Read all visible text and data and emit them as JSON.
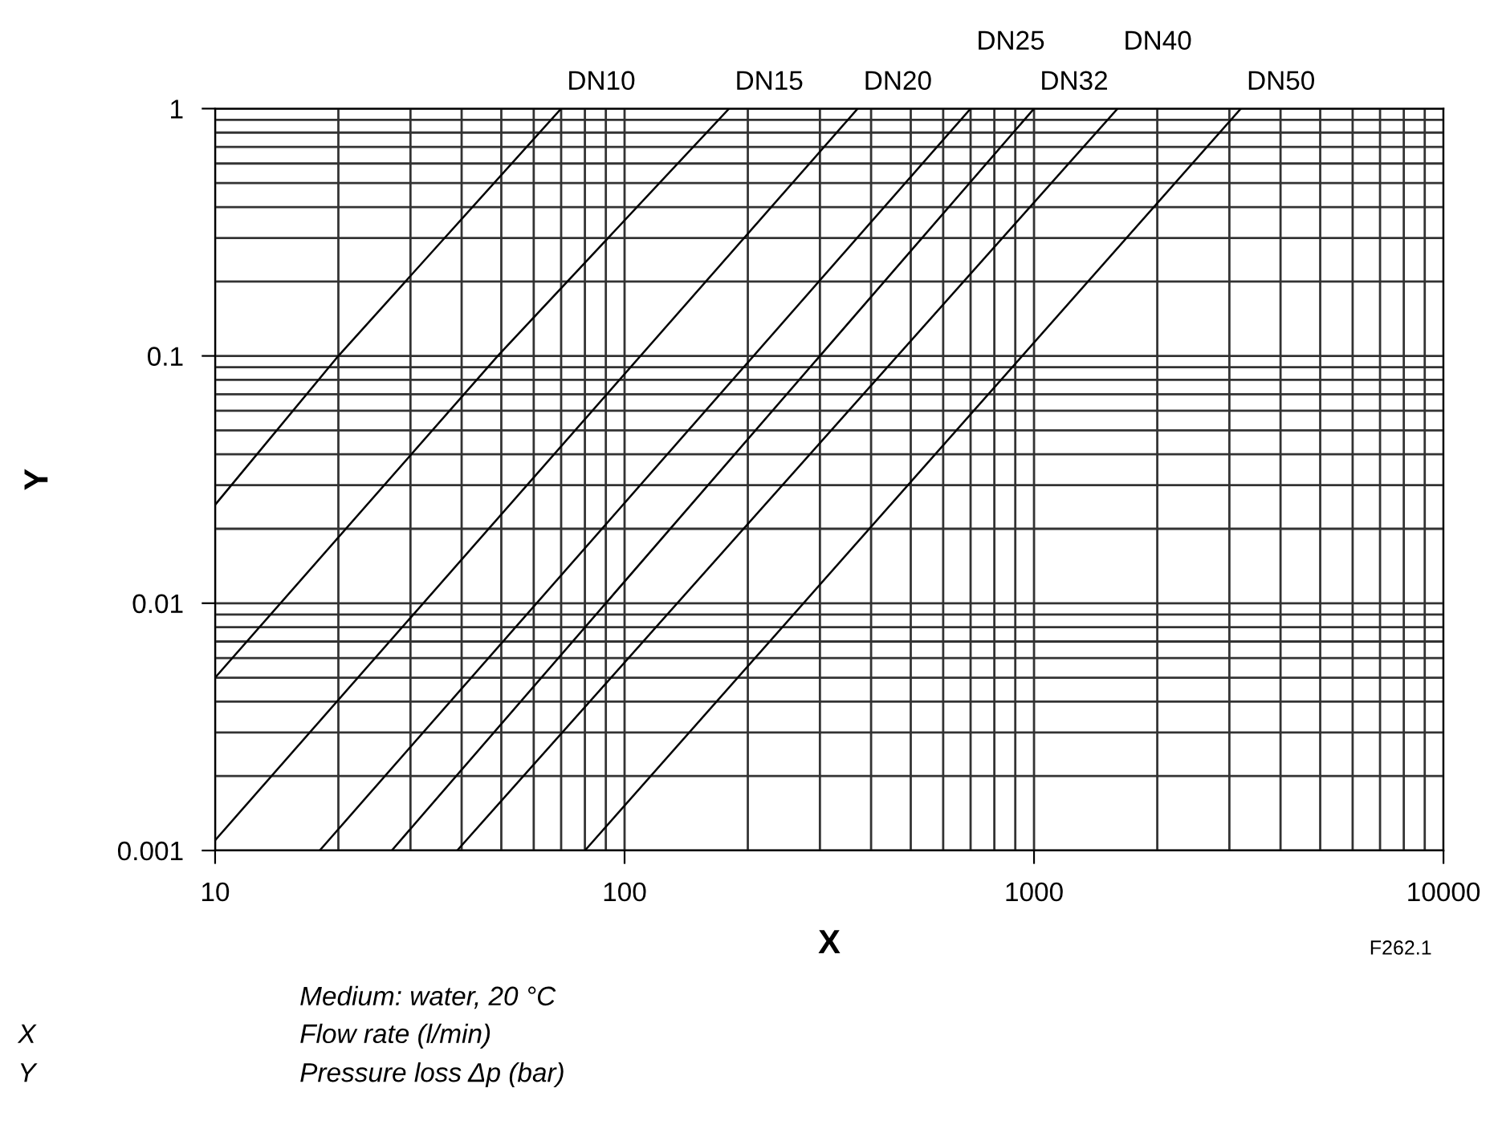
{
  "chart_data": {
    "type": "line",
    "xlabel": "X",
    "ylabel": "Y",
    "xlim": [
      10,
      10000
    ],
    "ylim": [
      0.001,
      1
    ],
    "xticks": [
      10,
      100,
      1000,
      10000
    ],
    "yticks": [
      0.001,
      0.01,
      0.1,
      1
    ],
    "log": "xy",
    "grid": true,
    "legend": false,
    "marker": "none",
    "line_style": "solid",
    "series": [
      {
        "name": "DN10",
        "color": "#000000",
        "x": [
          10,
          20,
          70
        ],
        "values": [
          0.025,
          0.1,
          1
        ]
      },
      {
        "name": "DN15",
        "color": "#000000",
        "x": [
          10,
          49,
          180
        ],
        "values": [
          0.005,
          0.1,
          1
        ]
      },
      {
        "name": "DN20",
        "color": "#000000",
        "x": [
          10,
          371
        ],
        "values": [
          0.0011,
          1
        ]
      },
      {
        "name": "DN25",
        "color": "#000000",
        "x": [
          18,
          700
        ],
        "values": [
          0.001,
          1
        ]
      },
      {
        "name": "DN32",
        "color": "#000000",
        "x": [
          27,
          1000
        ],
        "values": [
          0.001,
          1
        ]
      },
      {
        "name": "DN40",
        "color": "#000000",
        "x": [
          39,
          1600
        ],
        "values": [
          0.001,
          1
        ]
      },
      {
        "name": "DN50",
        "color": "#000000",
        "x": [
          80,
          3200
        ],
        "values": [
          0.001,
          1
        ]
      }
    ],
    "annotations": [
      "F262.1",
      "Medium: water, 20 °C",
      "X",
      "Flow rate (l/min)",
      "Y",
      "Pressure loss Δp (bar)"
    ]
  }
}
